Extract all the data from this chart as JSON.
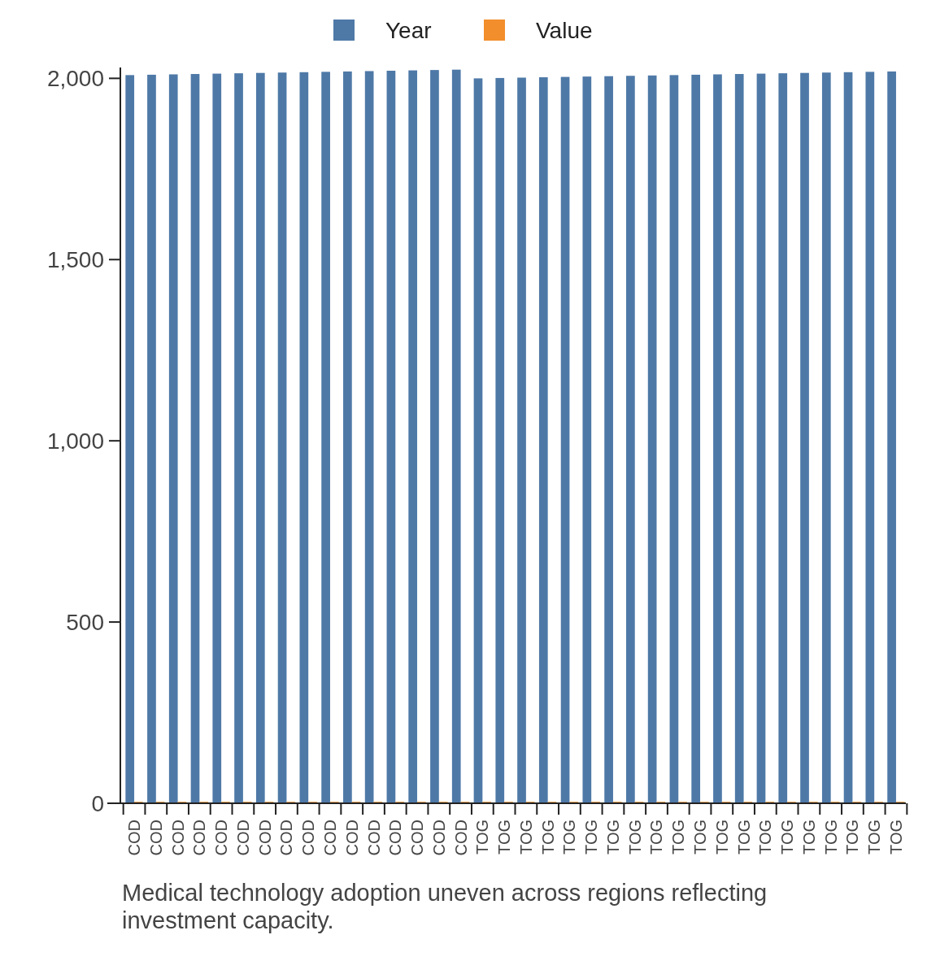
{
  "chart_data": {
    "type": "bar",
    "categories": [
      "COD",
      "COD",
      "COD",
      "COD",
      "COD",
      "COD",
      "COD",
      "COD",
      "COD",
      "COD",
      "COD",
      "COD",
      "COD",
      "COD",
      "COD",
      "COD",
      "TOG",
      "TOG",
      "TOG",
      "TOG",
      "TOG",
      "TOG",
      "TOG",
      "TOG",
      "TOG",
      "TOG",
      "TOG",
      "TOG",
      "TOG",
      "TOG",
      "TOG",
      "TOG",
      "TOG",
      "TOG",
      "TOG",
      "TOG"
    ],
    "series": [
      {
        "name": "Year",
        "color": "#4e79a7",
        "values": [
          2009,
          2010,
          2011,
          2012,
          2013,
          2014,
          2015,
          2016,
          2017,
          2018,
          2019,
          2020,
          2021,
          2022,
          2023,
          2024,
          2000,
          2001,
          2002,
          2003,
          2004,
          2005,
          2006,
          2007,
          2008,
          2009,
          2010,
          2011,
          2012,
          2013,
          2014,
          2015,
          2016,
          2017,
          2018,
          2019
        ]
      },
      {
        "name": "Value",
        "color": "#f28e2b",
        "values": [
          4,
          4,
          4,
          4,
          4,
          4,
          4,
          4,
          4,
          4,
          4,
          4,
          4,
          4,
          4,
          4,
          4,
          4,
          4,
          4,
          4,
          4,
          4,
          4,
          4,
          4,
          4,
          4,
          4,
          4,
          4,
          4,
          4,
          4,
          4,
          4
        ]
      }
    ],
    "ylim": [
      0,
      2030
    ],
    "yticks": [
      {
        "value": 0,
        "label": "0"
      },
      {
        "value": 500,
        "label": "500"
      },
      {
        "value": 1000,
        "label": "1,000"
      },
      {
        "value": 1500,
        "label": "1,500"
      },
      {
        "value": 2000,
        "label": "2,000"
      }
    ],
    "grid": false,
    "legend": "top",
    "annotations": [
      "Medical technology adoption uneven across regions reflecting investment capacity."
    ]
  }
}
